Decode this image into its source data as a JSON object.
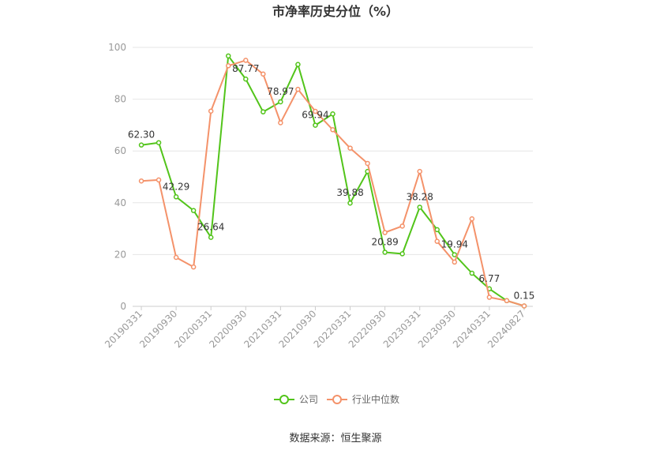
{
  "chart_data": {
    "type": "line",
    "title": "市净率历史分位（%）",
    "xlabel": "",
    "ylabel": "",
    "ylim": [
      0,
      100
    ],
    "yticks": [
      0,
      20,
      40,
      60,
      80,
      100
    ],
    "grid": true,
    "legend_position": "bottom",
    "categories": [
      "20190331",
      "20190630",
      "20190930",
      "20191231",
      "20200331",
      "20200630",
      "20200930",
      "20201231",
      "20210331",
      "20210630",
      "20210930",
      "20211231",
      "20220331",
      "20220630",
      "20220930",
      "20221231",
      "20230331",
      "20230630",
      "20230930",
      "20231231",
      "20240331",
      "20240630",
      "20240827"
    ],
    "xtick_labels": [
      "20190331",
      "20190930",
      "20200331",
      "20200930",
      "20210331",
      "20210930",
      "20220331",
      "20220930",
      "20230331",
      "20230930",
      "20240331",
      "20240827"
    ],
    "series": [
      {
        "name": "公司",
        "color": "#52c41a",
        "values": [
          62.3,
          63.2,
          42.29,
          37.0,
          26.64,
          96.7,
          87.77,
          75.1,
          78.97,
          93.4,
          69.94,
          74.3,
          39.88,
          52.1,
          20.89,
          20.3,
          38.28,
          29.6,
          19.94,
          12.8,
          6.77,
          2.2,
          0.15
        ],
        "labels": [
          "62.30",
          "",
          "42.29",
          "",
          "26.64",
          "",
          "87.77",
          "",
          "78.97",
          "",
          "69.94",
          "",
          "39.88",
          "",
          "20.89",
          "",
          "38.28",
          "",
          "19.94",
          "",
          "6.77",
          "",
          "0.15"
        ]
      },
      {
        "name": "行业中位数",
        "color": "#f4926a",
        "values": [
          48.4,
          48.8,
          18.9,
          15.2,
          75.4,
          92.9,
          95.0,
          89.7,
          70.9,
          83.8,
          75.3,
          68.2,
          61.1,
          55.2,
          28.5,
          31.0,
          52.1,
          25.1,
          17.1,
          33.8,
          3.5,
          2.2,
          0.15
        ]
      }
    ],
    "source": "数据来源：恒生聚源"
  }
}
